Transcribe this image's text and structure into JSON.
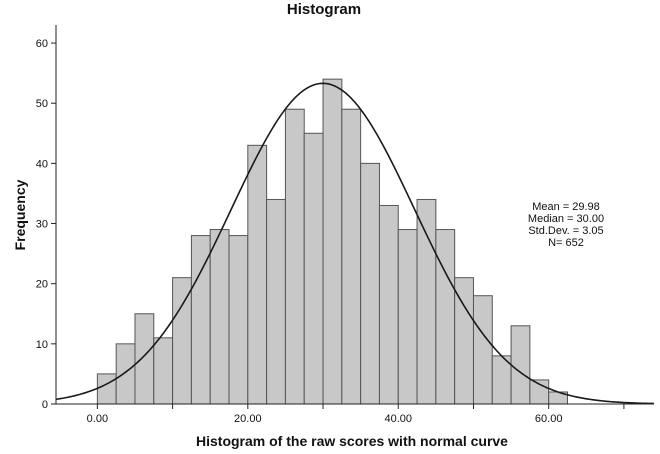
{
  "chart_data": {
    "type": "bar",
    "title": "Histogram",
    "xlabel": "Histogram of the raw scores with  normal curve",
    "ylabel": "Frequency",
    "bin_width": 2.5,
    "bins": [
      {
        "start": 0.0,
        "end": 2.5,
        "value": 5
      },
      {
        "start": 2.5,
        "end": 5.0,
        "value": 10
      },
      {
        "start": 5.0,
        "end": 7.5,
        "value": 15
      },
      {
        "start": 7.5,
        "end": 10.0,
        "value": 11
      },
      {
        "start": 10.0,
        "end": 12.5,
        "value": 21
      },
      {
        "start": 12.5,
        "end": 15.0,
        "value": 28
      },
      {
        "start": 15.0,
        "end": 17.5,
        "value": 29
      },
      {
        "start": 17.5,
        "end": 20.0,
        "value": 28
      },
      {
        "start": 20.0,
        "end": 22.5,
        "value": 43
      },
      {
        "start": 22.5,
        "end": 25.0,
        "value": 34
      },
      {
        "start": 25.0,
        "end": 27.5,
        "value": 49
      },
      {
        "start": 27.5,
        "end": 30.0,
        "value": 45
      },
      {
        "start": 30.0,
        "end": 32.5,
        "value": 54
      },
      {
        "start": 32.5,
        "end": 35.0,
        "value": 49
      },
      {
        "start": 35.0,
        "end": 37.5,
        "value": 40
      },
      {
        "start": 37.5,
        "end": 40.0,
        "value": 33
      },
      {
        "start": 40.0,
        "end": 42.5,
        "value": 29
      },
      {
        "start": 42.5,
        "end": 45.0,
        "value": 34
      },
      {
        "start": 45.0,
        "end": 47.5,
        "value": 29
      },
      {
        "start": 47.5,
        "end": 50.0,
        "value": 21
      },
      {
        "start": 50.0,
        "end": 52.5,
        "value": 18
      },
      {
        "start": 52.5,
        "end": 55.0,
        "value": 8
      },
      {
        "start": 55.0,
        "end": 57.5,
        "value": 13
      },
      {
        "start": 57.5,
        "end": 60.0,
        "value": 4
      },
      {
        "start": 60.0,
        "end": 62.5,
        "value": 2
      }
    ],
    "xlim": [
      -5.5,
      74
    ],
    "ylim": [
      0,
      63
    ],
    "xticks": [
      {
        "value": 0,
        "label": "0.00"
      },
      {
        "value": 20,
        "label": "20.00"
      },
      {
        "value": 40,
        "label": "40.00"
      },
      {
        "value": 60,
        "label": "60.00"
      }
    ],
    "xticks_minor": [
      10,
      30,
      50,
      70
    ],
    "yticks": [
      {
        "value": 0,
        "label": "0"
      },
      {
        "value": 10,
        "label": "10"
      },
      {
        "value": 20,
        "label": "20"
      },
      {
        "value": 30,
        "label": "30"
      },
      {
        "value": 40,
        "label": "40"
      },
      {
        "value": 50,
        "label": "50"
      },
      {
        "value": 60,
        "label": "60"
      }
    ],
    "normal_curve": {
      "mean": 29.98,
      "sd": 3.05,
      "n": 652,
      "curve_sd_units": 12.2
    },
    "stats_lines": [
      "Mean = 29.98",
      "Median = 30.00",
      "Std.Dev. = 3.05",
      "N= 652"
    ],
    "colors": {
      "bar_fill": "#c8c8c8",
      "bar_stroke": "#555555",
      "curve": "#1a1a1a",
      "axis": "#222222"
    }
  }
}
